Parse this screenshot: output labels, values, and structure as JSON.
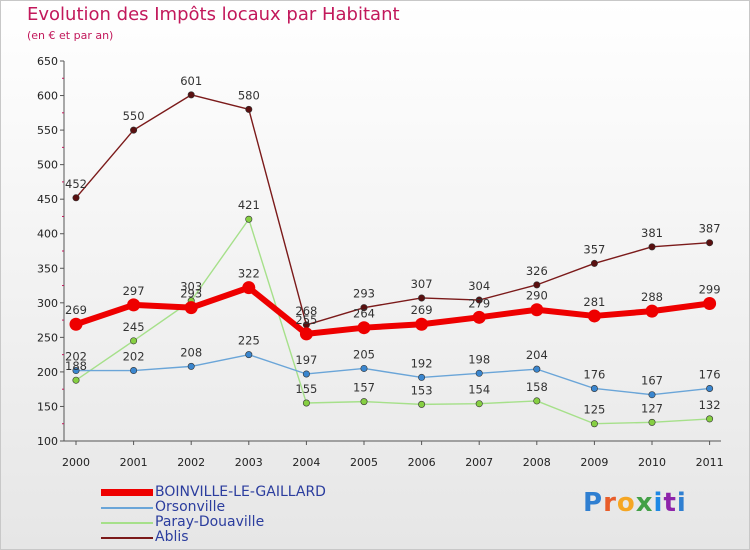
{
  "title": "Evolution des Impôts locaux par Habitant",
  "subtitle": "(en € et par an)",
  "logo_text": "Proxiti",
  "chart_data": {
    "type": "line",
    "title": "Evolution des Impôts locaux par Habitant",
    "ylabel": "(en € et par an)",
    "xlabel": "",
    "ylim": [
      100,
      650
    ],
    "yticks": [
      "100",
      "150",
      "200",
      "250",
      "300",
      "350",
      "400",
      "450",
      "500",
      "550",
      "600",
      "650"
    ],
    "categories": [
      "2000",
      "2001",
      "2002",
      "2003",
      "2004",
      "2005",
      "2006",
      "2007",
      "2008",
      "2009",
      "2010",
      "2011"
    ],
    "grid": false,
    "legend_position": "bottom-left",
    "series": [
      {
        "name": "Ablis",
        "color": "#7b1a1a",
        "dot": "#5a1010",
        "values": [
          452,
          550,
          601,
          580,
          268,
          293,
          307,
          304,
          326,
          357,
          381,
          387
        ],
        "labels": [
          "452",
          "550",
          "601",
          "580",
          "268",
          "293",
          "307",
          "304",
          "326",
          "357",
          "381",
          "387"
        ]
      },
      {
        "name": "Paray-Douaville",
        "color": "#a6e08a",
        "dot": "#86cf42",
        "values": [
          188,
          245,
          303,
          421,
          155,
          157,
          153,
          154,
          158,
          125,
          127,
          132
        ],
        "labels": [
          "188",
          "245",
          "303",
          "421",
          "155",
          "157",
          "153",
          "154",
          "158",
          "125",
          "127",
          "132"
        ]
      },
      {
        "name": "Orsonville",
        "color": "#6aa5d8",
        "dot": "#3a86cf",
        "values": [
          202,
          202,
          208,
          225,
          197,
          205,
          192,
          198,
          204,
          176,
          167,
          176
        ],
        "labels": [
          "202",
          "202",
          "208",
          "225",
          "197",
          "205",
          "192",
          "198",
          "204",
          "176",
          "167",
          "176"
        ]
      },
      {
        "name": "BOINVILLE-LE-GAILLARD",
        "color": "#ee0000",
        "dot": "#ee0000",
        "values": [
          269,
          297,
          293,
          322,
          255,
          264,
          269,
          279,
          290,
          281,
          288,
          299
        ],
        "labels": [
          "269",
          "297",
          "293",
          "322",
          "255",
          "264",
          "269",
          "279",
          "290",
          "281",
          "288",
          "299"
        ]
      }
    ],
    "legend_order": [
      "BOINVILLE-LE-GAILLARD",
      "Orsonville",
      "Paray-Douaville",
      "Ablis"
    ]
  }
}
